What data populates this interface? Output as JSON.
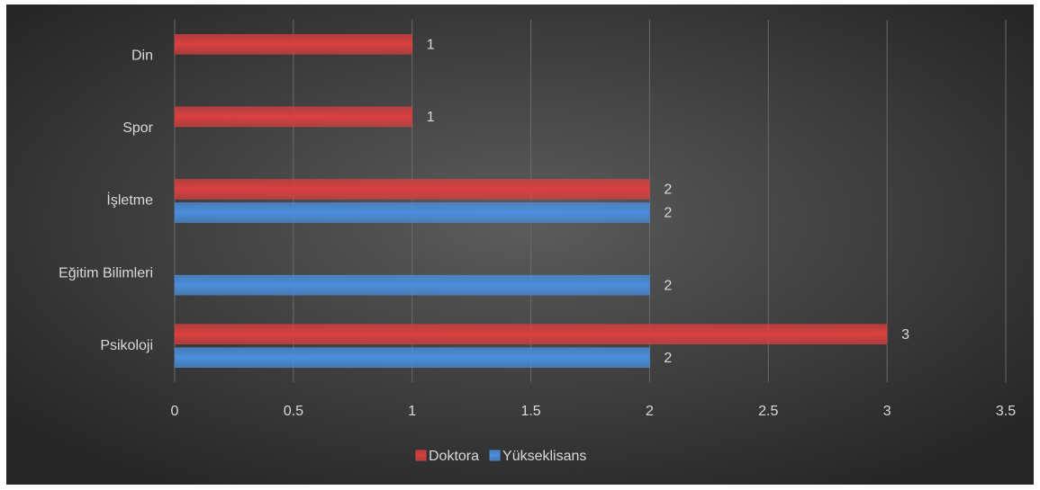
{
  "chart_data": {
    "type": "bar",
    "orientation": "horizontal",
    "categories": [
      "Psikoloji",
      "Eğitim Bilimleri",
      "İşletme",
      "Spor",
      "Din"
    ],
    "series": [
      {
        "name": "Doktora",
        "color": "#d9403f",
        "values": [
          3,
          null,
          2,
          1,
          1
        ]
      },
      {
        "name": "Yükseklisans",
        "color": "#4a8fdc",
        "values": [
          2,
          2,
          2,
          null,
          null
        ]
      }
    ],
    "xlim": [
      0,
      3.5
    ],
    "xticks": [
      0,
      0.5,
      1,
      1.5,
      2,
      2.5,
      3,
      3.5
    ],
    "grid": true,
    "legend": "bottom"
  }
}
